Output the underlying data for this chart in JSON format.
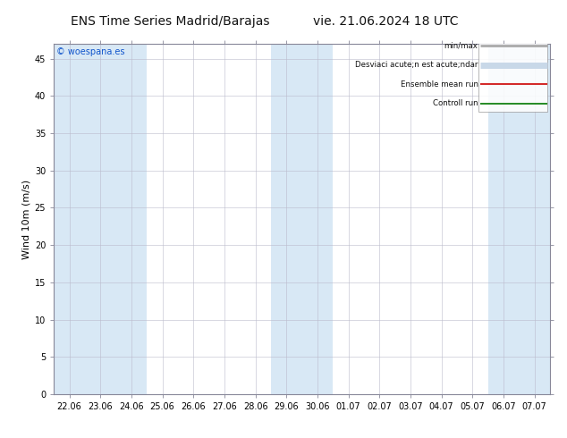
{
  "title": "ENS Time Series Madrid/Barajas",
  "title_right": "vie. 21.06.2024 18 UTC",
  "ylabel": "Wind 10m (m/s)",
  "watermark": "© woespana.es",
  "x_labels": [
    "22.06",
    "23.06",
    "24.06",
    "25.06",
    "26.06",
    "27.06",
    "28.06",
    "29.06",
    "30.06",
    "01.07",
    "02.07",
    "03.07",
    "04.07",
    "05.07",
    "06.07",
    "07.07"
  ],
  "ylim": [
    0,
    47
  ],
  "yticks": [
    0,
    5,
    10,
    15,
    20,
    25,
    30,
    35,
    40,
    45
  ],
  "bg_color": "#ffffff",
  "plot_bg": "#ffffff",
  "shaded_color": "#d8e8f5",
  "shaded_columns": [
    0,
    1,
    2,
    7,
    8,
    14,
    15
  ],
  "legend_labels": [
    "min/max",
    "Desviaci acute;n est acute;ndar",
    "Ensemble mean run",
    "Controll run"
  ],
  "legend_colors": [
    "#aaaaaa",
    "#c8d8e8",
    "#cc0000",
    "#007700"
  ],
  "legend_lw": [
    2.0,
    5.0,
    1.2,
    1.2
  ],
  "grid_color": "#bbbbcc",
  "title_fontsize": 10,
  "tick_fontsize": 7,
  "label_fontsize": 8,
  "spine_color": "#888899"
}
